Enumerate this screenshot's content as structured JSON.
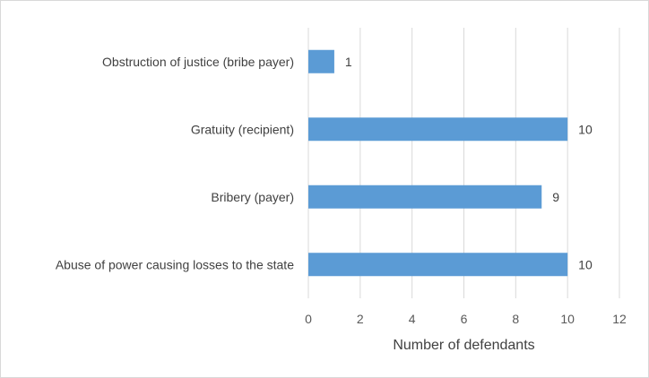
{
  "chart_data": {
    "type": "bar",
    "orientation": "horizontal",
    "categories": [
      "Obstruction of justice (bribe payer)",
      "Gratuity (recipient)",
      "Bribery (payer)",
      "Abuse of power causing losses to the state"
    ],
    "values": [
      1,
      10,
      9,
      10
    ],
    "data_labels": [
      "1",
      "10",
      "9",
      "10"
    ],
    "xlabel": "Number of defendants",
    "ylabel": "",
    "xlim": [
      0,
      12
    ],
    "x_ticks": [
      0,
      2,
      4,
      6,
      8,
      10,
      12
    ],
    "x_tick_labels": [
      "0",
      "2",
      "4",
      "6",
      "8",
      "10",
      "12"
    ],
    "grid": "vertical",
    "legend": "none",
    "bar_color": "#5B9BD5"
  }
}
